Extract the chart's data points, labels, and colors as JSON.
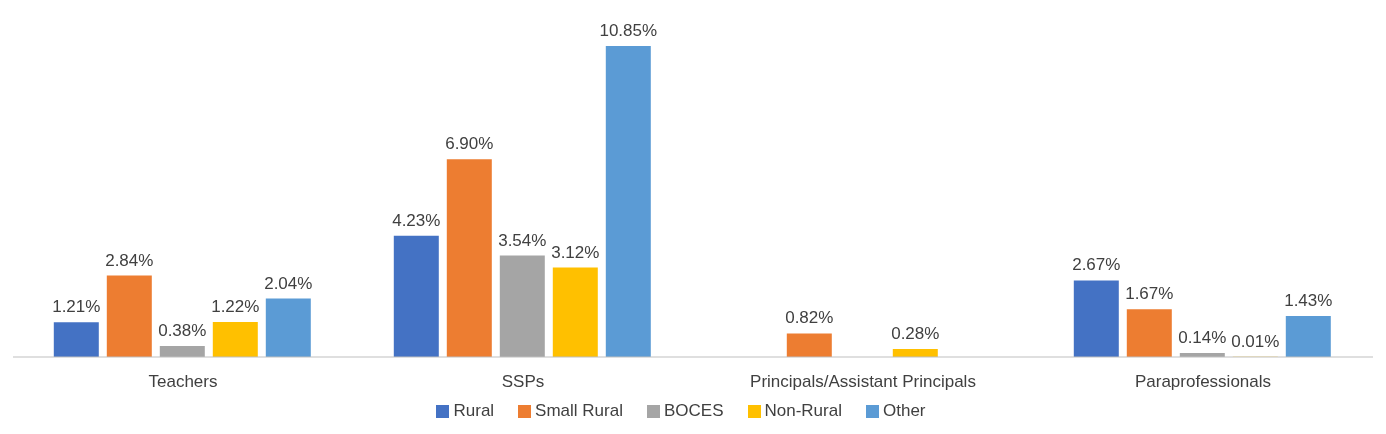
{
  "chart_data": {
    "type": "bar",
    "categories": [
      "Teachers",
      "SSPs",
      "Principals/Assistant Principals",
      "Paraprofessionals"
    ],
    "series": [
      {
        "name": "Rural",
        "color": "#4472c4",
        "values": [
          1.21,
          4.23,
          null,
          2.67
        ],
        "value_labels": [
          "1.21%",
          "4.23%",
          null,
          "2.67%"
        ]
      },
      {
        "name": "Small Rural",
        "color": "#ed7d31",
        "values": [
          2.84,
          6.9,
          0.82,
          1.67
        ],
        "value_labels": [
          "2.84%",
          "6.90%",
          "0.82%",
          "1.67%"
        ]
      },
      {
        "name": "BOCES",
        "color": "#a5a5a5",
        "values": [
          0.38,
          3.54,
          null,
          0.14
        ],
        "value_labels": [
          "0.38%",
          "3.54%",
          null,
          "0.14%"
        ]
      },
      {
        "name": "Non-Rural",
        "color": "#ffc000",
        "values": [
          1.22,
          3.12,
          0.28,
          0.01
        ],
        "value_labels": [
          "1.22%",
          "3.12%",
          "0.28%",
          "0.01%"
        ]
      },
      {
        "name": "Other",
        "color": "#5b9bd5",
        "values": [
          2.04,
          10.85,
          null,
          1.43
        ],
        "value_labels": [
          "2.04%",
          "10.85%",
          null,
          "1.43%"
        ]
      }
    ],
    "legend": "bottom",
    "grid": false
  }
}
